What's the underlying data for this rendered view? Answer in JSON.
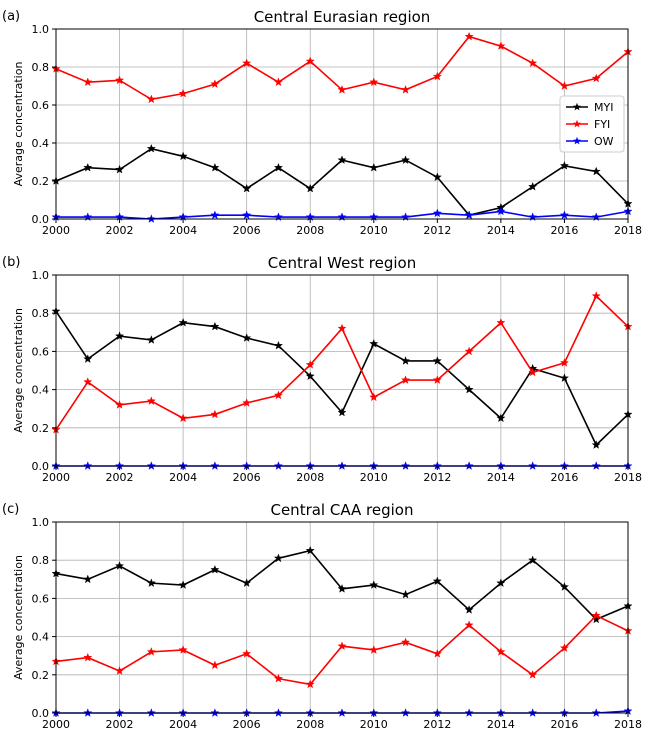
{
  "chart_data": [
    {
      "type": "line",
      "panel_label": "(a)",
      "title": "Central Eurasian region",
      "ylabel": "Average concentration",
      "xlabel": "",
      "xlim": [
        2000,
        2018
      ],
      "ylim": [
        0.0,
        1.0
      ],
      "grid": true,
      "legend_position": "right",
      "x": [
        2000,
        2001,
        2002,
        2003,
        2004,
        2005,
        2006,
        2007,
        2008,
        2009,
        2010,
        2011,
        2012,
        2013,
        2014,
        2015,
        2016,
        2017,
        2018
      ],
      "x_ticks": [
        "2000",
        "2002",
        "2004",
        "2006",
        "2008",
        "2010",
        "2012",
        "2014",
        "2016",
        "2018"
      ],
      "y_ticks": [
        "0.0",
        "0.2",
        "0.4",
        "0.6",
        "0.8",
        "1.0"
      ],
      "series": [
        {
          "name": "MYI",
          "color": "#000000",
          "values": [
            0.2,
            0.27,
            0.26,
            0.37,
            0.33,
            0.27,
            0.16,
            0.27,
            0.16,
            0.31,
            0.27,
            0.31,
            0.22,
            0.02,
            0.06,
            0.17,
            0.28,
            0.25,
            0.08
          ]
        },
        {
          "name": "FYI",
          "color": "#ff0000",
          "values": [
            0.79,
            0.72,
            0.73,
            0.63,
            0.66,
            0.71,
            0.82,
            0.72,
            0.83,
            0.68,
            0.72,
            0.68,
            0.75,
            0.96,
            0.91,
            0.82,
            0.7,
            0.74,
            0.88
          ]
        },
        {
          "name": "OW",
          "color": "#0000ff",
          "values": [
            0.01,
            0.01,
            0.01,
            0.0,
            0.01,
            0.02,
            0.02,
            0.01,
            0.01,
            0.01,
            0.01,
            0.01,
            0.03,
            0.02,
            0.04,
            0.01,
            0.02,
            0.01,
            0.04
          ]
        }
      ]
    },
    {
      "type": "line",
      "panel_label": "(b)",
      "title": "Central West region",
      "ylabel": "Average concentration",
      "xlabel": "",
      "xlim": [
        2000,
        2018
      ],
      "ylim": [
        0.0,
        1.0
      ],
      "grid": true,
      "x": [
        2000,
        2001,
        2002,
        2003,
        2004,
        2005,
        2006,
        2007,
        2008,
        2009,
        2010,
        2011,
        2012,
        2013,
        2014,
        2015,
        2016,
        2017,
        2018
      ],
      "x_ticks": [
        "2000",
        "2002",
        "2004",
        "2006",
        "2008",
        "2010",
        "2012",
        "2014",
        "2016",
        "2018"
      ],
      "y_ticks": [
        "0.0",
        "0.2",
        "0.4",
        "0.6",
        "0.8",
        "1.0"
      ],
      "series": [
        {
          "name": "MYI",
          "color": "#000000",
          "values": [
            0.81,
            0.56,
            0.68,
            0.66,
            0.75,
            0.73,
            0.67,
            0.63,
            0.47,
            0.28,
            0.64,
            0.55,
            0.55,
            0.4,
            0.25,
            0.51,
            0.46,
            0.11,
            0.27
          ]
        },
        {
          "name": "FYI",
          "color": "#ff0000",
          "values": [
            0.19,
            0.44,
            0.32,
            0.34,
            0.25,
            0.27,
            0.33,
            0.37,
            0.53,
            0.72,
            0.36,
            0.45,
            0.45,
            0.6,
            0.75,
            0.49,
            0.54,
            0.89,
            0.73
          ]
        },
        {
          "name": "OW",
          "color": "#0000ff",
          "values": [
            0.0,
            0.0,
            0.0,
            0.0,
            0.0,
            0.0,
            0.0,
            0.0,
            0.0,
            0.0,
            0.0,
            0.0,
            0.0,
            0.0,
            0.0,
            0.0,
            0.0,
            0.0,
            0.0
          ]
        }
      ]
    },
    {
      "type": "line",
      "panel_label": "(c)",
      "title": "Central CAA region",
      "ylabel": "Average concentration",
      "xlabel": "",
      "xlim": [
        2000,
        2018
      ],
      "ylim": [
        0.0,
        1.0
      ],
      "grid": true,
      "x": [
        2000,
        2001,
        2002,
        2003,
        2004,
        2005,
        2006,
        2007,
        2008,
        2009,
        2010,
        2011,
        2012,
        2013,
        2014,
        2015,
        2016,
        2017,
        2018
      ],
      "x_ticks": [
        "2000",
        "2002",
        "2004",
        "2006",
        "2008",
        "2010",
        "2012",
        "2014",
        "2016",
        "2018"
      ],
      "y_ticks": [
        "0.0",
        "0.2",
        "0.4",
        "0.6",
        "0.8",
        "1.0"
      ],
      "series": [
        {
          "name": "MYI",
          "color": "#000000",
          "values": [
            0.73,
            0.7,
            0.77,
            0.68,
            0.67,
            0.75,
            0.68,
            0.81,
            0.85,
            0.65,
            0.67,
            0.62,
            0.69,
            0.54,
            0.68,
            0.8,
            0.66,
            0.49,
            0.56
          ]
        },
        {
          "name": "FYI",
          "color": "#ff0000",
          "values": [
            0.27,
            0.29,
            0.22,
            0.32,
            0.33,
            0.25,
            0.31,
            0.18,
            0.15,
            0.35,
            0.33,
            0.37,
            0.31,
            0.46,
            0.32,
            0.2,
            0.34,
            0.51,
            0.43
          ]
        },
        {
          "name": "OW",
          "color": "#0000ff",
          "values": [
            0.0,
            0.0,
            0.0,
            0.0,
            0.0,
            0.0,
            0.0,
            0.0,
            0.0,
            0.0,
            0.0,
            0.0,
            0.0,
            0.0,
            0.0,
            0.0,
            0.0,
            0.0,
            0.01
          ]
        }
      ]
    }
  ]
}
